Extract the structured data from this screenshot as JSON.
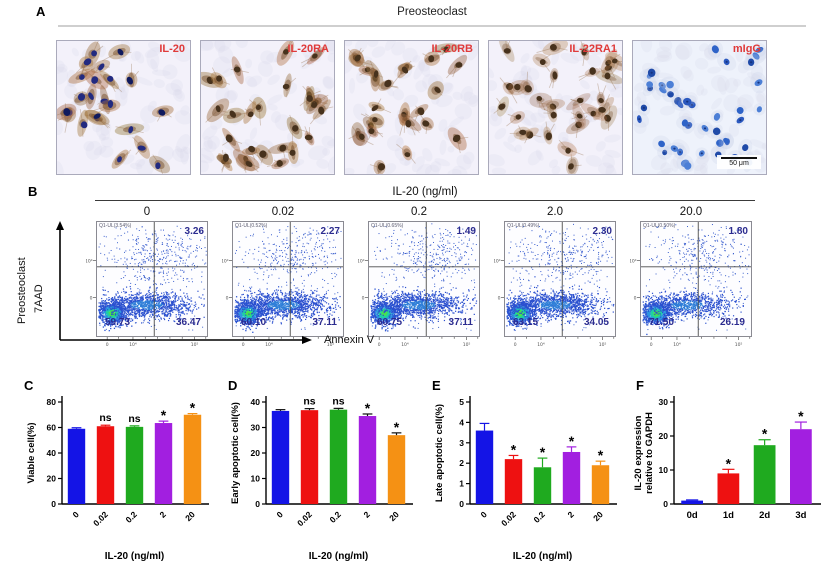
{
  "panel_a": {
    "letter": "A",
    "title": "Preosteoclast",
    "label_color": "#e03a3a",
    "scale_bar": "50 μm",
    "images": [
      {
        "label": "IL-20",
        "stain": "blue-nuclei-brown"
      },
      {
        "label": "IL-20RA",
        "stain": "brown"
      },
      {
        "label": "IL-20RB",
        "stain": "brown"
      },
      {
        "label": "IL-22RA1",
        "stain": "brown-light"
      },
      {
        "label": "mIgG",
        "stain": "blue-nuclei-only"
      }
    ]
  },
  "panel_b": {
    "letter": "B",
    "header": "IL-20 (ng/ml)",
    "y_axis_outer": "Preosteoclast",
    "y_axis_inner": "7AAD",
    "x_axis": "Annexin V",
    "value_color": "#2b2b8f",
    "x_ticks": [
      "0",
      "10⁴",
      "10⁵"
    ],
    "y_ticks": [
      "10⁴",
      "0"
    ],
    "plots": [
      {
        "conc": "0",
        "gate": "Q1-UL(3.54%)",
        "upper_right": "3.26",
        "lower_left": "59.73",
        "lower_right": "36.47"
      },
      {
        "conc": "0.02",
        "gate": "Q1-UL(0.52%)",
        "upper_right": "2.27",
        "lower_left": "60.10",
        "lower_right": "37.11"
      },
      {
        "conc": "0.2",
        "gate": "Q1-UL(0.65%)",
        "upper_right": "1.49",
        "lower_left": "60.75",
        "lower_right": "37.11"
      },
      {
        "conc": "2.0",
        "gate": "Q1-UL(0.49%)",
        "upper_right": "2.30",
        "lower_left": "63.15",
        "lower_right": "34.05"
      },
      {
        "conc": "20.0",
        "gate": "Q1-UL(0.50%)",
        "upper_right": "1.80",
        "lower_left": "71.50",
        "lower_right": "26.19"
      }
    ]
  },
  "chart_data": [
    {
      "panel": "C",
      "type": "bar",
      "categories": [
        "0",
        "0.02",
        "0.2",
        "2",
        "20"
      ],
      "values": [
        59,
        61,
        60.5,
        63.5,
        70
      ],
      "errors": [
        0.8,
        0.8,
        0.8,
        1.5,
        0.9
      ],
      "significance": [
        "",
        "ns",
        "ns",
        "*",
        "*"
      ],
      "colors": [
        "#1414e6",
        "#ee1111",
        "#1faa1f",
        "#a21fe0",
        "#f59114"
      ],
      "error_color": "match",
      "rotate_x": true,
      "ylabel": "Viable cell(%)",
      "xlabel": "IL-20 (ng/ml)",
      "ylim": [
        0,
        80
      ],
      "yticks": [
        0,
        20,
        40,
        60,
        80
      ]
    },
    {
      "panel": "D",
      "type": "bar",
      "categories": [
        "0",
        "0.02",
        "0.2",
        "2",
        "20"
      ],
      "values": [
        36.5,
        36.8,
        37,
        34.5,
        27
      ],
      "errors": [
        0.5,
        0.6,
        0.5,
        0.8,
        0.9
      ],
      "significance": [
        "",
        "ns",
        "ns",
        "*",
        "*"
      ],
      "colors": [
        "#1414e6",
        "#ee1111",
        "#1faa1f",
        "#a21fe0",
        "#f59114"
      ],
      "error_color": "black",
      "rotate_x": true,
      "ylabel": "Early apoptotic cell(%)",
      "xlabel": "IL-20 (ng/ml)",
      "ylim": [
        0,
        40
      ],
      "yticks": [
        0,
        10,
        20,
        30,
        40
      ]
    },
    {
      "panel": "E",
      "type": "bar",
      "categories": [
        "0",
        "0.02",
        "0.2",
        "2",
        "20"
      ],
      "values": [
        3.6,
        2.2,
        1.8,
        2.55,
        1.9
      ],
      "errors": [
        0.35,
        0.18,
        0.45,
        0.25,
        0.2
      ],
      "significance": [
        "",
        "*",
        "*",
        "*",
        "*"
      ],
      "colors": [
        "#1414e6",
        "#ee1111",
        "#1faa1f",
        "#a21fe0",
        "#f59114"
      ],
      "error_color": "match",
      "rotate_x": true,
      "ylabel": "Late apoptotic cell(%)",
      "xlabel": "IL-20 (ng/ml)",
      "ylim": [
        0,
        5
      ],
      "yticks": [
        0,
        1,
        2,
        3,
        4,
        5
      ]
    },
    {
      "panel": "F",
      "type": "bar",
      "categories": [
        "0d",
        "1d",
        "2d",
        "3d"
      ],
      "values": [
        1,
        9,
        17.3,
        22
      ],
      "errors": [
        0.2,
        1.2,
        1.6,
        2.1
      ],
      "significance": [
        "",
        "*",
        "*",
        "*"
      ],
      "colors": [
        "#1414e6",
        "#ee1111",
        "#1faa1f",
        "#a21fe0"
      ],
      "error_color": "match",
      "rotate_x": false,
      "ylabel": [
        "IL-20 expression",
        "relative to GAPDH"
      ],
      "xlabel": "",
      "ylim": [
        0,
        30
      ],
      "yticks": [
        0,
        10,
        20,
        30
      ]
    }
  ]
}
